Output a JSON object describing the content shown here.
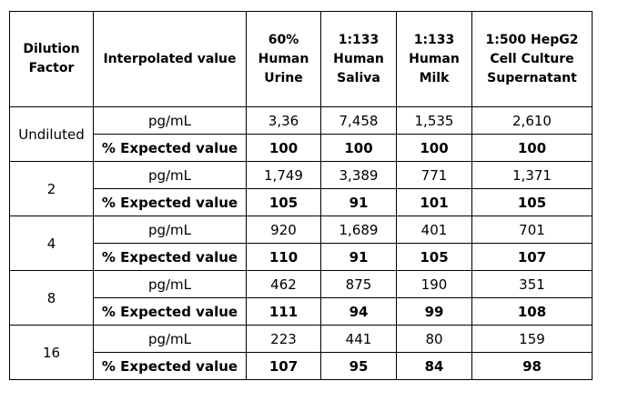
{
  "table": {
    "header": [
      "Dilution Factor",
      "Interpolated value",
      "60% Human Urine",
      "1:133 Human Saliva",
      "1:133 Human Milk",
      "1:500 HepG2 Cell Culture Supernatant"
    ],
    "groups": [
      {
        "dilution": "Undiluted",
        "rows": [
          [
            "pg/mL",
            "3,36",
            "7,458",
            "1,535",
            "2,610"
          ],
          [
            "% Expected value",
            "100",
            "100",
            "100",
            "100"
          ]
        ]
      },
      {
        "dilution": "2",
        "rows": [
          [
            "pg/mL",
            "1,749",
            "3,389",
            "771",
            "1,371"
          ],
          [
            "% Expected value",
            "105",
            "91",
            "101",
            "105"
          ]
        ]
      },
      {
        "dilution": "4",
        "rows": [
          [
            "pg/mL",
            "920",
            "1,689",
            "401",
            "701"
          ],
          [
            "% Expected value",
            "110",
            "91",
            "105",
            "107"
          ]
        ]
      },
      {
        "dilution": "8",
        "rows": [
          [
            "pg/mL",
            "462",
            "875",
            "190",
            "351"
          ],
          [
            "% Expected value",
            "111",
            "94",
            "99",
            "108"
          ]
        ]
      },
      {
        "dilution": "16",
        "rows": [
          [
            "pg/mL",
            "223",
            "441",
            "80",
            "159"
          ],
          [
            "% Expected value",
            "107",
            "95",
            "84",
            "98"
          ]
        ]
      }
    ]
  }
}
